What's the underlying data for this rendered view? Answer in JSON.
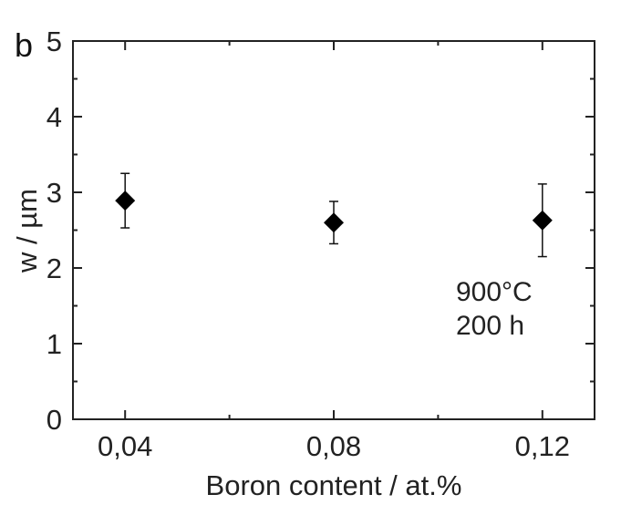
{
  "panel_label": "b",
  "chart_data": {
    "type": "scatter",
    "xlabel": "Boron content / at.%",
    "ylabel": "w / µm",
    "xlim": [
      0.03,
      0.13
    ],
    "ylim": [
      0,
      5
    ],
    "x_ticks": [
      0.04,
      0.08,
      0.12
    ],
    "x_tick_labels": [
      "0,04",
      "0,08",
      "0,12"
    ],
    "y_ticks": [
      0,
      1,
      2,
      3,
      4,
      5
    ],
    "y_tick_labels": [
      "0",
      "1",
      "2",
      "3",
      "4",
      "5"
    ],
    "grid": false,
    "marker": "diamond",
    "marker_color": "#000000",
    "points": [
      {
        "x": 0.04,
        "y": 2.89,
        "err_low": 2.53,
        "err_high": 3.25
      },
      {
        "x": 0.08,
        "y": 2.6,
        "err_low": 2.32,
        "err_high": 2.88
      },
      {
        "x": 0.12,
        "y": 2.63,
        "err_low": 2.15,
        "err_high": 3.11
      }
    ],
    "annotations": [
      "900°C",
      "200 h"
    ]
  }
}
